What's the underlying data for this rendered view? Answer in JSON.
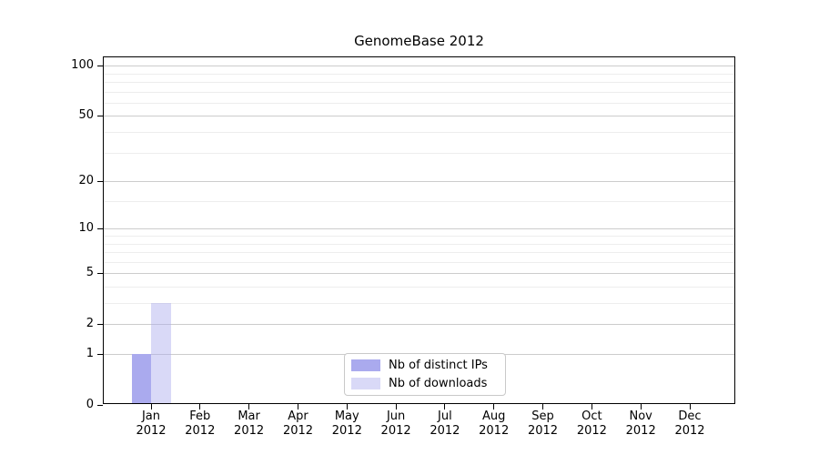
{
  "title": "GenomeBase 2012",
  "legend": {
    "items": [
      {
        "label": "Nb of distinct IPs",
        "color": "#aaaaee"
      },
      {
        "label": "Nb of downloads",
        "color": "#d9d9f7"
      }
    ]
  },
  "chart_data": {
    "type": "bar",
    "title": "GenomeBase 2012",
    "categories": [
      "Jan 2012",
      "Feb 2012",
      "Mar 2012",
      "Apr 2012",
      "May 2012",
      "Jun 2012",
      "Jul 2012",
      "Aug 2012",
      "Sep 2012",
      "Oct 2012",
      "Nov 2012",
      "Dec 2012"
    ],
    "series": [
      {
        "name": "Nb of distinct IPs",
        "color": "#aaaaee",
        "fill": "#aaaaee",
        "values": [
          1,
          0,
          0,
          0,
          0,
          0,
          0,
          0,
          0,
          0,
          0,
          0
        ]
      },
      {
        "name": "Nb of downloads",
        "color": "#d9d9f7",
        "fill": "rgba(170,170,238,0.45)",
        "values": [
          3,
          0,
          0,
          0,
          0,
          0,
          0,
          0,
          0,
          0,
          0,
          0
        ]
      }
    ],
    "xlabel": "",
    "ylabel": "",
    "yscale": "log1p",
    "ylim": [
      0,
      112
    ],
    "y_major_ticks": [
      0,
      1,
      2,
      5,
      10,
      20,
      50,
      100
    ],
    "y_tick_labels": [
      "0",
      "1",
      "2",
      "5",
      "10",
      "20",
      "50",
      "100"
    ],
    "y_minor_ticks": [
      3,
      4,
      6,
      7,
      8,
      9,
      15,
      30,
      40,
      60,
      70,
      80,
      90
    ],
    "x_tick_labels": [
      [
        "Jan",
        "2012"
      ],
      [
        "Feb",
        "2012"
      ],
      [
        "Mar",
        "2012"
      ],
      [
        "Apr",
        "2012"
      ],
      [
        "May",
        "2012"
      ],
      [
        "Jun",
        "2012"
      ],
      [
        "Jul",
        "2012"
      ],
      [
        "Aug",
        "2012"
      ],
      [
        "Sep",
        "2012"
      ],
      [
        "Oct",
        "2012"
      ],
      [
        "Nov",
        "2012"
      ],
      [
        "Dec",
        "2012"
      ]
    ],
    "grid": true,
    "legend_position": "lower center",
    "colors": {
      "major_grid": "#cccccc",
      "minor_grid": "#ededed",
      "spine": "#000000",
      "background": "#ffffff"
    }
  }
}
